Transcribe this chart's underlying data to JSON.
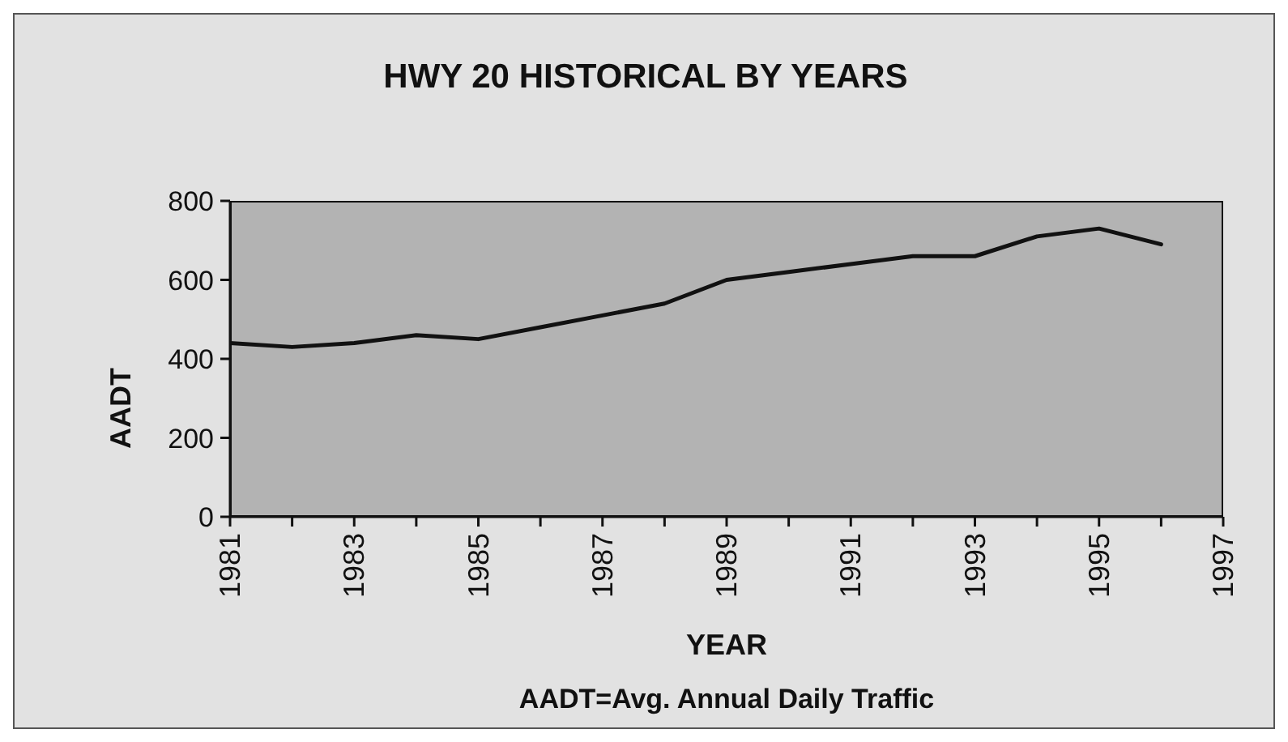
{
  "chart_data": {
    "type": "line",
    "title": "HWY 20 HISTORICAL BY YEARS",
    "xlabel": "YEAR",
    "ylabel": "AADT",
    "annotations": [
      "AADT=Avg. Annual Daily Traffic"
    ],
    "x": [
      1981,
      1982,
      1983,
      1984,
      1985,
      1986,
      1987,
      1988,
      1989,
      1990,
      1991,
      1992,
      1993,
      1994,
      1995,
      1996
    ],
    "series": [
      {
        "color": "#111111",
        "values": [
          440,
          430,
          440,
          460,
          450,
          480,
          510,
          540,
          600,
          620,
          640,
          660,
          660,
          710,
          730,
          690
        ]
      }
    ],
    "xlim": [
      1981,
      1997
    ],
    "ylim": [
      0,
      800
    ],
    "xticks": [
      1981,
      {
        "value": 1982,
        "label": null
      },
      1983,
      {
        "value": 1984,
        "label": null
      },
      1985,
      {
        "value": 1986,
        "label": null
      },
      1987,
      {
        "value": 1988,
        "label": null
      },
      1989,
      {
        "value": 1990,
        "label": null
      },
      1991,
      {
        "value": 1992,
        "label": null
      },
      1993,
      {
        "value": 1994,
        "label": null
      },
      1995,
      {
        "value": 1996,
        "label": null
      },
      1997
    ],
    "yticks": [
      0,
      200,
      400,
      600,
      800
    ],
    "marker": "none",
    "line_style": "solid"
  }
}
